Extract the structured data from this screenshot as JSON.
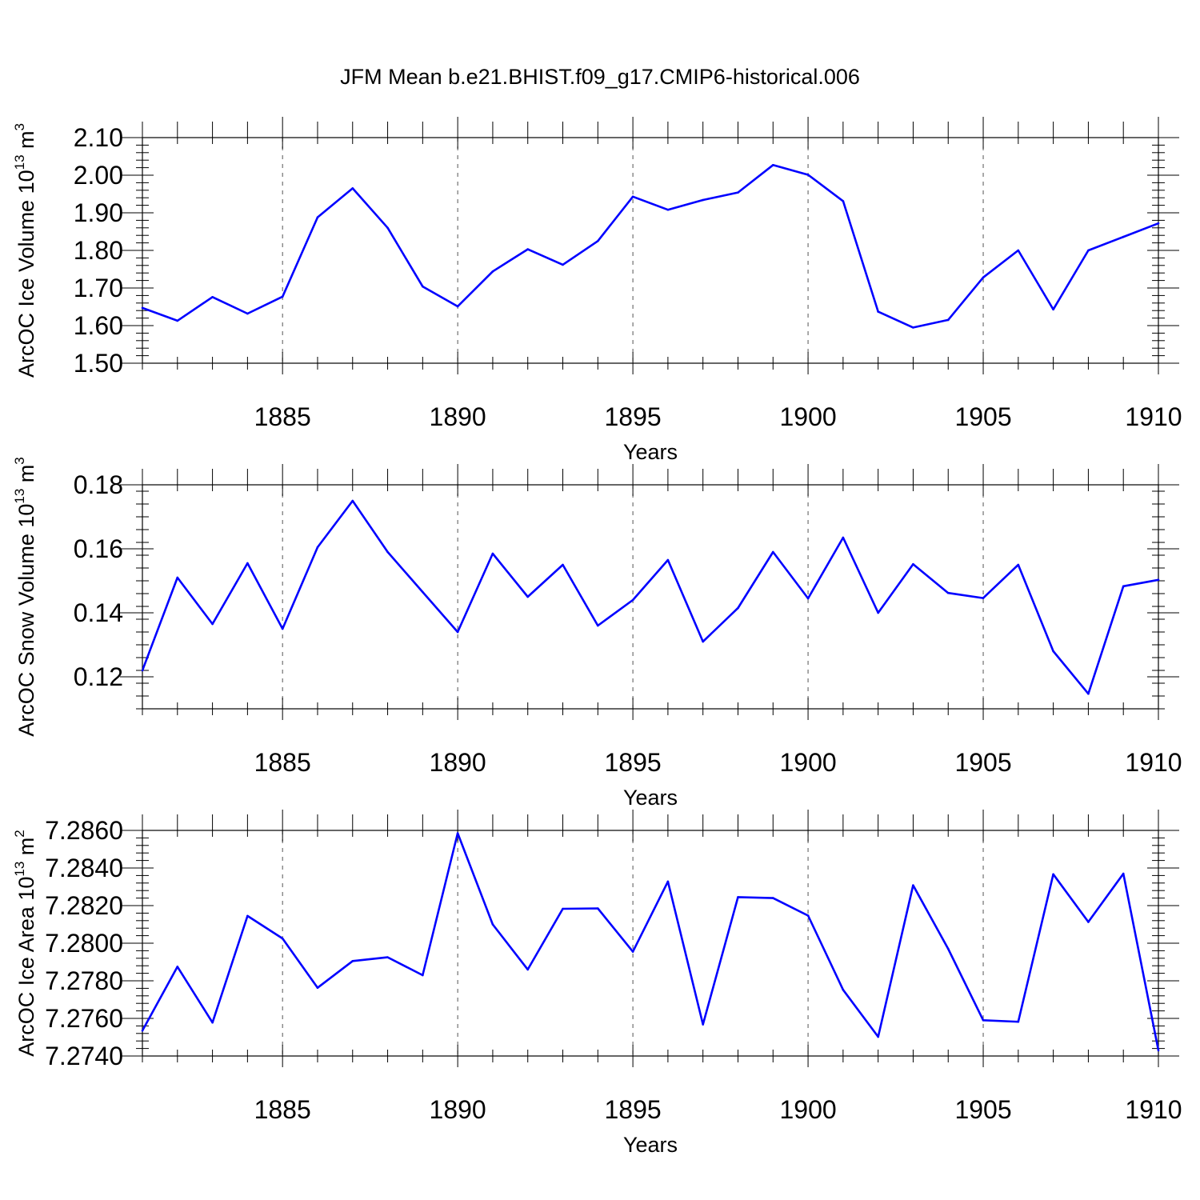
{
  "figure_title": "JFM Mean b.e21.BHIST.f09_g17.CMIP6-historical.006",
  "colors": {
    "line": "#0000ff",
    "axis": "#000000",
    "grid": "#555555"
  },
  "chart_data": [
    {
      "type": "line",
      "ylabel": "ArcOC Ice Volume 10",
      "ylabel_exp": "13",
      "ylabel_unit": " m",
      "ylabel_unit_exp": "3",
      "xlabel": "Years",
      "xlim": [
        1881,
        1910
      ],
      "ylim": [
        1.5,
        2.1
      ],
      "xticks": [
        1885,
        1890,
        1895,
        1900,
        1905,
        1910
      ],
      "yticks": [
        1.5,
        1.6,
        1.7,
        1.8,
        1.9,
        2.0,
        2.1
      ],
      "ytick_labels": [
        "1.50",
        "1.60",
        "1.70",
        "1.80",
        "1.90",
        "2.00",
        "2.10"
      ],
      "minor_y_step": 0.02,
      "grid_x": true,
      "x": [
        1881,
        1882,
        1883,
        1884,
        1885,
        1886,
        1887,
        1888,
        1889,
        1890,
        1891,
        1892,
        1893,
        1894,
        1895,
        1896,
        1897,
        1898,
        1899,
        1900,
        1901,
        1902,
        1903,
        1904,
        1905,
        1906,
        1907,
        1908,
        1909,
        1910
      ],
      "values": [
        1.647,
        1.613,
        1.676,
        1.632,
        1.677,
        1.888,
        1.965,
        1.86,
        1.704,
        1.651,
        1.744,
        1.803,
        1.762,
        1.825,
        1.943,
        1.908,
        1.934,
        1.954,
        2.027,
        2.001,
        1.931,
        1.637,
        1.595,
        1.615,
        1.728,
        1.8,
        1.643,
        1.8,
        1.836,
        1.872
      ]
    },
    {
      "type": "line",
      "ylabel": "ArcOC Snow Volume 10",
      "ylabel_exp": "13",
      "ylabel_unit": " m",
      "ylabel_unit_exp": "3",
      "xlabel": "Years",
      "xlim": [
        1881,
        1910
      ],
      "ylim": [
        0.11,
        0.18
      ],
      "xticks": [
        1885,
        1890,
        1895,
        1900,
        1905,
        1910
      ],
      "yticks": [
        0.12,
        0.14,
        0.16,
        0.18
      ],
      "ytick_labels": [
        "0.12",
        "0.14",
        "0.16",
        "0.18"
      ],
      "minor_y_step": 0.004,
      "grid_x": true,
      "x": [
        1881,
        1882,
        1883,
        1884,
        1885,
        1886,
        1887,
        1888,
        1889,
        1890,
        1891,
        1892,
        1893,
        1894,
        1895,
        1896,
        1897,
        1898,
        1899,
        1900,
        1901,
        1902,
        1903,
        1904,
        1905,
        1906,
        1907,
        1908,
        1909,
        1910
      ],
      "values": [
        0.122,
        0.151,
        0.1365,
        0.1555,
        0.135,
        0.1605,
        0.175,
        0.159,
        0.1465,
        0.134,
        0.1585,
        0.145,
        0.155,
        0.136,
        0.144,
        0.1565,
        0.131,
        0.1415,
        0.159,
        0.1445,
        0.1635,
        0.14,
        0.1552,
        0.1462,
        0.1446,
        0.155,
        0.128,
        0.1147,
        0.1483,
        0.1503
      ]
    },
    {
      "type": "line",
      "ylabel": "ArcOC Ice Area 10",
      "ylabel_exp": "13",
      "ylabel_unit": " m",
      "ylabel_unit_exp": "2",
      "xlabel": "Years",
      "xlim": [
        1881,
        1910
      ],
      "ylim": [
        7.274,
        7.286
      ],
      "xticks": [
        1885,
        1890,
        1895,
        1900,
        1905,
        1910
      ],
      "yticks": [
        7.274,
        7.276,
        7.278,
        7.28,
        7.282,
        7.284,
        7.286
      ],
      "ytick_labels": [
        "7.2740",
        "7.2760",
        "7.2780",
        "7.2800",
        "7.2820",
        "7.2840",
        "7.2860"
      ],
      "minor_y_step": 0.0004,
      "grid_x": true,
      "x": [
        1881,
        1882,
        1883,
        1884,
        1885,
        1886,
        1887,
        1888,
        1889,
        1890,
        1891,
        1892,
        1893,
        1894,
        1895,
        1896,
        1897,
        1898,
        1899,
        1900,
        1901,
        1902,
        1903,
        1904,
        1905,
        1906,
        1907,
        1908,
        1909,
        1910
      ],
      "values": [
        7.27535,
        7.27875,
        7.27578,
        7.28145,
        7.28025,
        7.27763,
        7.27905,
        7.27925,
        7.2783,
        7.28585,
        7.281,
        7.2786,
        7.28183,
        7.28185,
        7.27955,
        7.28328,
        7.27568,
        7.28245,
        7.2824,
        7.28147,
        7.27752,
        7.27502,
        7.28308,
        7.2797,
        7.2759,
        7.27582,
        7.28367,
        7.28113,
        7.2837,
        7.2743
      ]
    }
  ]
}
